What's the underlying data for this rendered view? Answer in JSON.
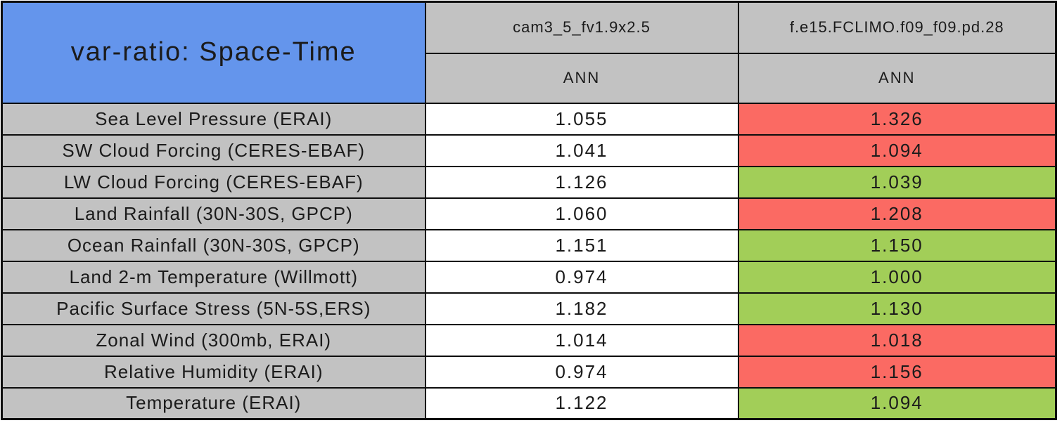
{
  "title": "var-ratio: Space-Time",
  "colors": {
    "title-bg": "#6495ec",
    "header-bg": "#c2c2c2",
    "label-bg": "#c2c2c2",
    "good": "#a2ce58",
    "bad": "#fb6a63",
    "neutral": "#ffffff",
    "border": "#0d0d0d",
    "text": "#1b1b1b"
  },
  "models": [
    {
      "name": "cam3_5_fv1.9x2.5",
      "season": "ANN"
    },
    {
      "name": "f.e15.FCLIMO.f09_f09.pd.28",
      "season": "ANN"
    }
  ],
  "rows": [
    {
      "label": "Sea Level Pressure (ERAI)",
      "model1": "1.055",
      "model1_status": "neutral",
      "model2": "1.326",
      "model2_status": "bad"
    },
    {
      "label": "SW Cloud Forcing (CERES-EBAF)",
      "model1": "1.041",
      "model1_status": "neutral",
      "model2": "1.094",
      "model2_status": "bad"
    },
    {
      "label": "LW Cloud Forcing (CERES-EBAF)",
      "model1": "1.126",
      "model1_status": "neutral",
      "model2": "1.039",
      "model2_status": "good"
    },
    {
      "label": "Land Rainfall (30N-30S, GPCP)",
      "model1": "1.060",
      "model1_status": "neutral",
      "model2": "1.208",
      "model2_status": "bad"
    },
    {
      "label": "Ocean Rainfall (30N-30S, GPCP)",
      "model1": "1.151",
      "model1_status": "neutral",
      "model2": "1.150",
      "model2_status": "good"
    },
    {
      "label": "Land 2-m Temperature (Willmott)",
      "model1": "0.974",
      "model1_status": "neutral",
      "model2": "1.000",
      "model2_status": "good"
    },
    {
      "label": "Pacific Surface Stress (5N-5S,ERS)",
      "model1": "1.182",
      "model1_status": "neutral",
      "model2": "1.130",
      "model2_status": "good"
    },
    {
      "label": "Zonal Wind (300mb, ERAI)",
      "model1": "1.014",
      "model1_status": "neutral",
      "model2": "1.018",
      "model2_status": "bad"
    },
    {
      "label": "Relative Humidity (ERAI)",
      "model1": "0.974",
      "model1_status": "neutral",
      "model2": "1.156",
      "model2_status": "bad"
    },
    {
      "label": "Temperature (ERAI)",
      "model1": "1.122",
      "model1_status": "neutral",
      "model2": "1.094",
      "model2_status": "good"
    }
  ],
  "chart_data": {
    "type": "table",
    "title": "var-ratio: Space-Time",
    "columns": [
      "cam3_5_fv1.9x2.5 (ANN)",
      "f.e15.FCLIMO.f09_f09.pd.28 (ANN)"
    ],
    "categories": [
      "Sea Level Pressure (ERAI)",
      "SW Cloud Forcing (CERES-EBAF)",
      "LW Cloud Forcing (CERES-EBAF)",
      "Land Rainfall (30N-30S, GPCP)",
      "Ocean Rainfall (30N-30S, GPCP)",
      "Land 2-m Temperature (Willmott)",
      "Pacific Surface Stress (5N-5S,ERS)",
      "Zonal Wind (300mb, ERAI)",
      "Relative Humidity (ERAI)",
      "Temperature (ERAI)"
    ],
    "series": [
      {
        "name": "cam3_5_fv1.9x2.5",
        "values": [
          1.055,
          1.041,
          1.126,
          1.06,
          1.151,
          0.974,
          1.182,
          1.014,
          0.974,
          1.122
        ],
        "cell_colors": [
          "white",
          "white",
          "white",
          "white",
          "white",
          "white",
          "white",
          "white",
          "white",
          "white"
        ]
      },
      {
        "name": "f.e15.FCLIMO.f09_f09.pd.28",
        "values": [
          1.326,
          1.094,
          1.039,
          1.208,
          1.15,
          1.0,
          1.13,
          1.018,
          1.156,
          1.094
        ],
        "cell_colors": [
          "red",
          "red",
          "green",
          "red",
          "green",
          "green",
          "green",
          "red",
          "red",
          "green"
        ]
      }
    ]
  }
}
